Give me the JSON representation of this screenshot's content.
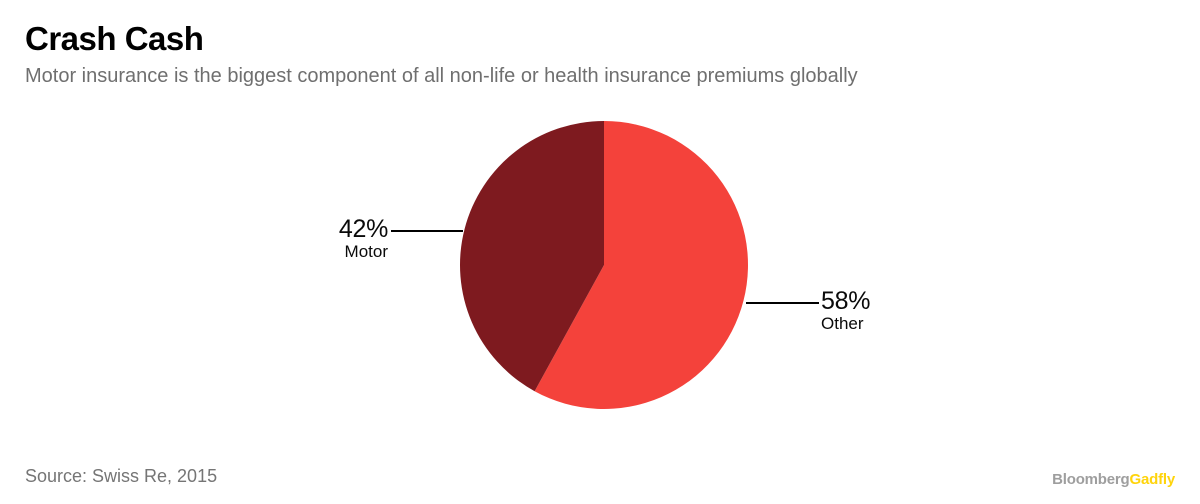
{
  "header": {
    "title": "Crash Cash",
    "subtitle": "Motor insurance is the biggest component of all non-life or health insurance premiums globally"
  },
  "chart_data": {
    "type": "pie",
    "title": "Crash Cash",
    "subtitle": "Motor insurance is the biggest component of all non-life or health insurance premiums globally",
    "start_angle": "12-oclock",
    "direction": "clockwise",
    "slices": [
      {
        "label": "Other",
        "value": 58,
        "pct_label": "58%",
        "color": "#f4423b"
      },
      {
        "label": "Motor",
        "value": 42,
        "pct_label": "42%",
        "color": "#7e1a1f"
      }
    ],
    "source": "Source: Swiss Re, 2015"
  },
  "footer": {
    "source": "Source: Swiss Re, 2015",
    "logo": {
      "part1": "Bloomberg",
      "part2": "Gadfly",
      "part1_color": "#9e9e9e",
      "part2_color": "#ffd40c"
    }
  }
}
